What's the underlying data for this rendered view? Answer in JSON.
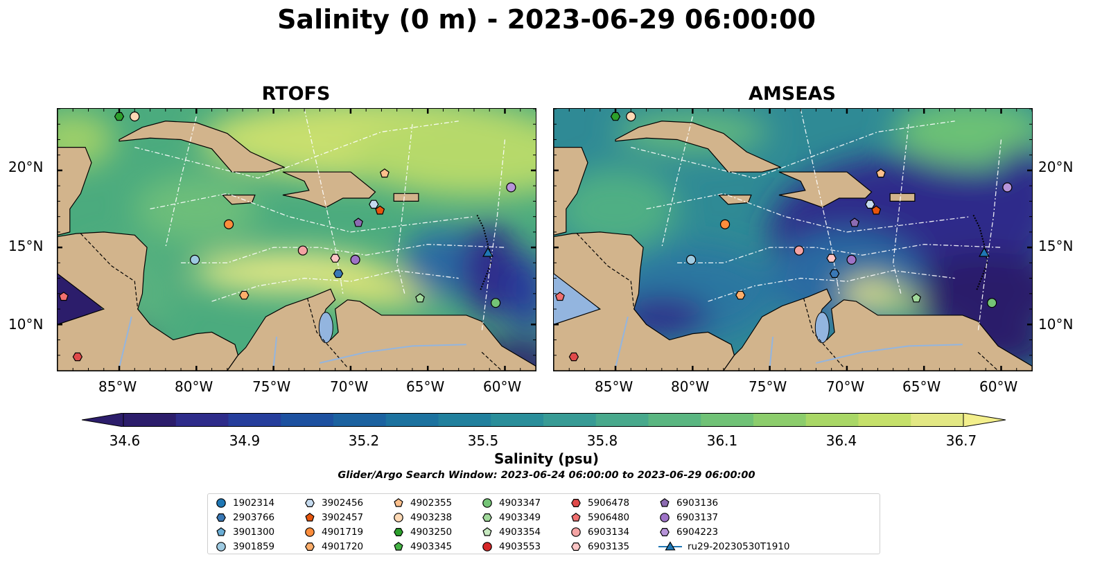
{
  "title": "Salinity (0 m) - 2023-06-29 06:00:00",
  "panels": [
    {
      "title": "RTOFS"
    },
    {
      "title": "AMSEAS"
    }
  ],
  "latitude_labels": [
    "20°N",
    "15°N",
    "10°N"
  ],
  "longitude_labels": [
    "85°W",
    "80°W",
    "75°W",
    "70°W",
    "65°W",
    "60°W"
  ],
  "colorbar": {
    "label": "Salinity (psu)",
    "ticks": [
      "34.6",
      "34.9",
      "35.2",
      "35.5",
      "35.8",
      "36.1",
      "36.4",
      "36.7"
    ],
    "colors": [
      "#2c1d6b",
      "#2e2c8a",
      "#263e9c",
      "#1d51a0",
      "#1b62a0",
      "#1c729f",
      "#21809d",
      "#2a8e9a",
      "#389b95",
      "#48a98c",
      "#5ab681",
      "#70c276",
      "#8ccd6c",
      "#a9d766",
      "#c5e06a",
      "#e3e884"
    ]
  },
  "search_window": "Glider/Argo Search Window: 2023-06-24 06:00:00 to 2023-06-29 06:00:00",
  "legend": [
    {
      "label": "1902314",
      "shape": "circle",
      "color": "#1f77b4"
    },
    {
      "label": "2903766",
      "shape": "hexagon",
      "color": "#3a78b5"
    },
    {
      "label": "3901300",
      "shape": "pentagon",
      "color": "#6baed6"
    },
    {
      "label": "3901859",
      "shape": "circle",
      "color": "#9ecae1"
    },
    {
      "label": "3902456",
      "shape": "hexagon",
      "color": "#c6dbef"
    },
    {
      "label": "3902457",
      "shape": "pentagon",
      "color": "#e6550d"
    },
    {
      "label": "4901719",
      "shape": "circle",
      "color": "#fd8d3c"
    },
    {
      "label": "4901720",
      "shape": "hexagon",
      "color": "#fdae6b"
    },
    {
      "label": "4902355",
      "shape": "pentagon",
      "color": "#fdc08c"
    },
    {
      "label": "4903238",
      "shape": "circle",
      "color": "#fdd9b5"
    },
    {
      "label": "4903250",
      "shape": "hexagon",
      "color": "#2ca02c"
    },
    {
      "label": "4903345",
      "shape": "pentagon",
      "color": "#45b345"
    },
    {
      "label": "4903347",
      "shape": "circle",
      "color": "#74c476"
    },
    {
      "label": "4903349",
      "shape": "hexagon",
      "color": "#a1d99b"
    },
    {
      "label": "4903354",
      "shape": "pentagon",
      "color": "#c7e9c0"
    },
    {
      "label": "4903553",
      "shape": "circle",
      "color": "#d62728"
    },
    {
      "label": "5906478",
      "shape": "hexagon",
      "color": "#e04a4a"
    },
    {
      "label": "5906480",
      "shape": "pentagon",
      "color": "#f07070"
    },
    {
      "label": "6903134",
      "shape": "circle",
      "color": "#f4a3a3"
    },
    {
      "label": "6903135",
      "shape": "hexagon",
      "color": "#fcc5c5"
    },
    {
      "label": "6903136",
      "shape": "pentagon",
      "color": "#8c6bb1"
    },
    {
      "label": "6903137",
      "shape": "circle",
      "color": "#9e73c7"
    },
    {
      "label": "6904223",
      "shape": "hexagon",
      "color": "#b794d9"
    },
    {
      "label": "ru29-20230530T1910",
      "shape": "triangle",
      "color": "#1f77b4"
    }
  ],
  "markers": [
    {
      "lon": -85.0,
      "lat": 23.5,
      "shape": "hexagon",
      "color": "#2ca02c"
    },
    {
      "lon": -84.0,
      "lat": 23.5,
      "shape": "circle",
      "color": "#fdd9b5"
    },
    {
      "lon": -67.8,
      "lat": 19.8,
      "shape": "pentagon",
      "color": "#fdc08c"
    },
    {
      "lon": -59.6,
      "lat": 18.9,
      "shape": "circle",
      "color": "#b794d9"
    },
    {
      "lon": -68.5,
      "lat": 17.8,
      "shape": "hexagon",
      "color": "#c6dbef"
    },
    {
      "lon": -68.1,
      "lat": 17.4,
      "shape": "pentagon",
      "color": "#e6550d"
    },
    {
      "lon": -77.9,
      "lat": 16.5,
      "shape": "circle",
      "color": "#fd8d3c"
    },
    {
      "lon": -69.5,
      "lat": 16.6,
      "shape": "pentagon",
      "color": "#8c6bb1"
    },
    {
      "lon": -73.1,
      "lat": 14.8,
      "shape": "circle",
      "color": "#f4a3a3"
    },
    {
      "lon": -71.0,
      "lat": 14.3,
      "shape": "hexagon",
      "color": "#fcc5c5"
    },
    {
      "lon": -69.7,
      "lat": 14.2,
      "shape": "circle",
      "color": "#9e73c7"
    },
    {
      "lon": -80.1,
      "lat": 14.2,
      "shape": "circle",
      "color": "#9ecae1"
    },
    {
      "lon": -70.8,
      "lat": 13.3,
      "shape": "hexagon",
      "color": "#3a78b5"
    },
    {
      "lon": -76.9,
      "lat": 11.9,
      "shape": "hexagon",
      "color": "#fdae6b"
    },
    {
      "lon": -65.5,
      "lat": 11.7,
      "shape": "pentagon",
      "color": "#a1d99b"
    },
    {
      "lon": -60.6,
      "lat": 11.4,
      "shape": "circle",
      "color": "#74c476"
    },
    {
      "lon": -88.6,
      "lat": 11.8,
      "shape": "pentagon",
      "color": "#f07070"
    },
    {
      "lon": -87.7,
      "lat": 7.9,
      "shape": "hexagon",
      "color": "#e04a4a"
    },
    {
      "lon": -61.1,
      "lat": 14.6,
      "shape": "triangle",
      "color": "#1f77b4"
    }
  ]
}
